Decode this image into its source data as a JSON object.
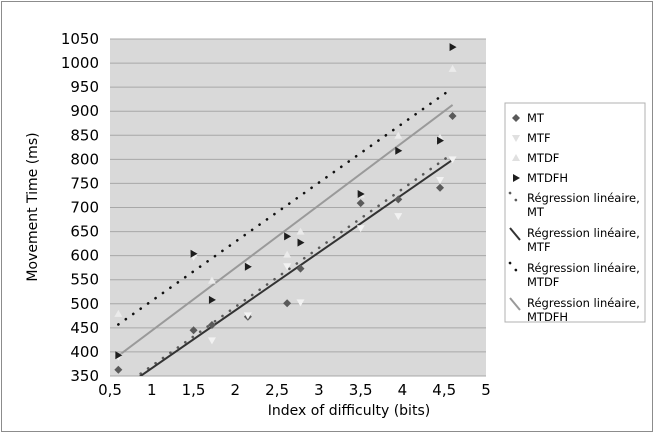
{
  "chart_data": {
    "type": "scatter",
    "xlabel": "Index of difficulty (bits)",
    "ylabel": "Movement Time (ms)",
    "xlim": [
      0.5,
      5
    ],
    "ylim": [
      350,
      1050
    ],
    "x_ticks": [
      "0,5",
      "1",
      "1,5",
      "2",
      "2,5",
      "3",
      "3,5",
      "4",
      "4,5",
      "5"
    ],
    "y_ticks": [
      "350",
      "400",
      "450",
      "500",
      "550",
      "600",
      "650",
      "700",
      "750",
      "800",
      "850",
      "900",
      "950",
      "1000",
      "1050"
    ],
    "grid": "horizontal",
    "legend_position": "right",
    "plot_background": "#d9d9d9",
    "series": [
      {
        "name": "MT",
        "marker": "diamond",
        "color": "#5a5a5a",
        "x": [
          0.6,
          1.5,
          1.72,
          2.15,
          2.62,
          2.78,
          3.5,
          3.95,
          4.45,
          4.6
        ],
        "y": [
          363,
          445,
          456,
          473,
          501,
          573,
          709,
          717,
          741,
          890
        ]
      },
      {
        "name": "MTF",
        "marker": "triangle-down",
        "color": "#f2f2f2",
        "x": [
          0.6,
          1.5,
          1.72,
          2.15,
          2.62,
          2.78,
          3.5,
          3.95,
          4.45,
          4.6
        ],
        "y": [
          390,
          598,
          424,
          476,
          578,
          503,
          657,
          682,
          757,
          800
        ]
      },
      {
        "name": "MTDF",
        "marker": "triangle-up",
        "color": "#ebebeb",
        "x": [
          0.6,
          1.5,
          1.72,
          2.15,
          2.62,
          2.78,
          3.5,
          3.95,
          4.45,
          4.6
        ],
        "y": [
          479,
          604,
          548,
          581,
          602,
          650,
          727,
          849,
          845,
          988
        ]
      },
      {
        "name": "MTDFH",
        "marker": "triangle-right",
        "color": "#1e1e1e",
        "x": [
          0.6,
          1.5,
          1.72,
          2.15,
          2.62,
          2.78,
          3.5,
          3.95,
          4.45,
          4.6
        ],
        "y": [
          393,
          604,
          508,
          577,
          640,
          627,
          728,
          818,
          839,
          1033
        ]
      }
    ],
    "trendlines": [
      {
        "name": "Régression linéaire, MT",
        "style": "dotted",
        "color": "#5a5a5a",
        "from": [
          0.6,
          322
        ],
        "to": [
          4.6,
          812
        ]
      },
      {
        "name": "Régression linéaire, MTF",
        "style": "solid",
        "color": "#333333",
        "from": [
          0.6,
          318
        ],
        "to": [
          4.6,
          799
        ]
      },
      {
        "name": "Régression linéaire, MTDF",
        "style": "dotted",
        "color": "#111111",
        "from": [
          0.6,
          457
        ],
        "to": [
          4.6,
          948
        ]
      },
      {
        "name": "Régression linéaire, MTDFH",
        "style": "solid",
        "color": "#9a9a9a",
        "from": [
          0.6,
          392
        ],
        "to": [
          4.6,
          913
        ]
      }
    ],
    "legend": [
      {
        "label": "MT"
      },
      {
        "label": "MTF"
      },
      {
        "label": "MTDF"
      },
      {
        "label": "MTDFH"
      },
      {
        "label_lines": [
          "Régression linéaire,",
          "MT"
        ]
      },
      {
        "label_lines": [
          "Régression linéaire,",
          "MTF"
        ]
      },
      {
        "label_lines": [
          "Régression linéaire,",
          "MTDF"
        ]
      },
      {
        "label_lines": [
          "Régression linéaire,",
          "MTDFH"
        ]
      }
    ]
  }
}
